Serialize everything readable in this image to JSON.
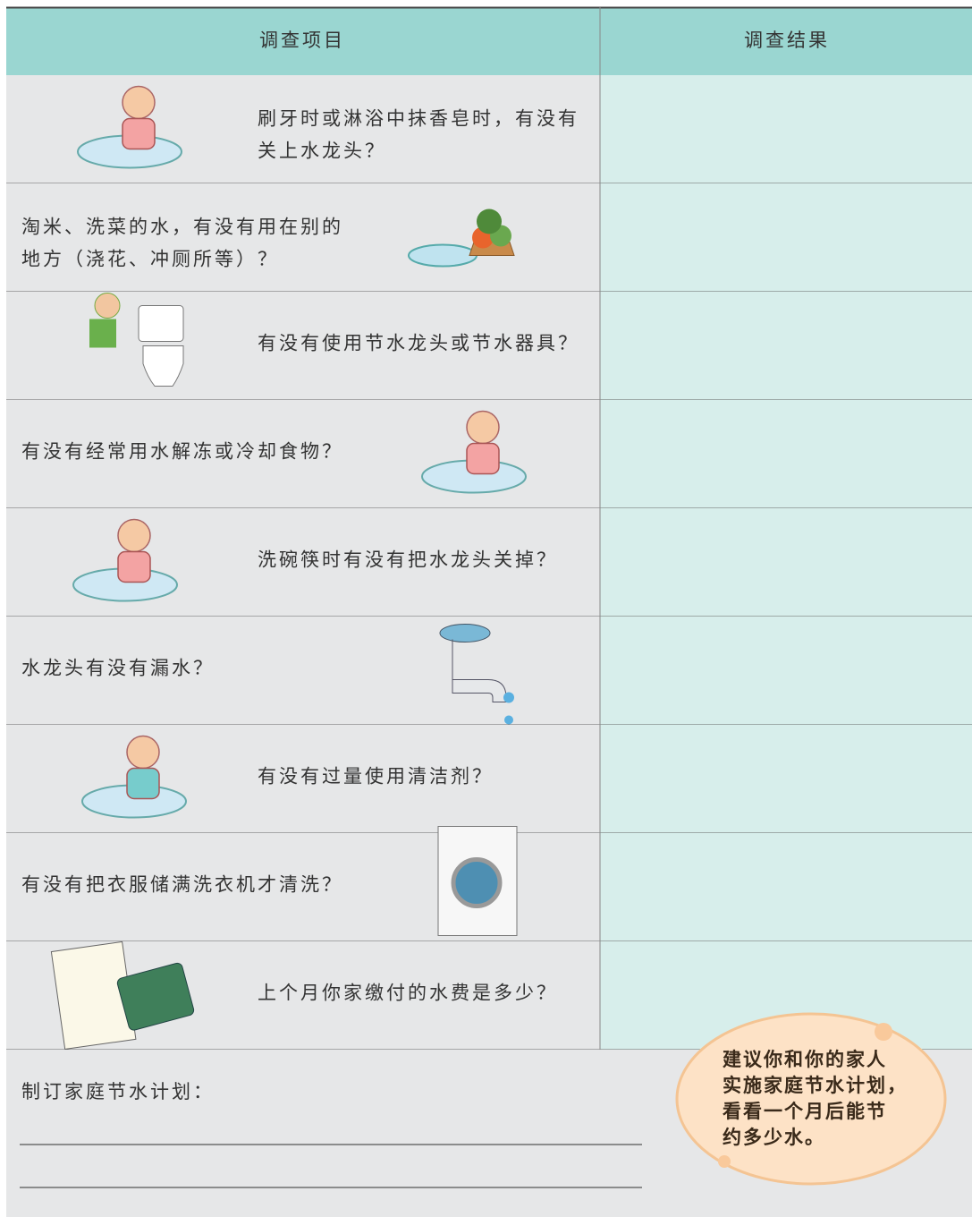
{
  "header": {
    "item": "调查项目",
    "result": "调查结果"
  },
  "rows": [
    {
      "lines": [
        "刷牙时或淋浴中抹香皂时，有没有",
        "关上水龙头？"
      ]
    },
    {
      "lines": [
        "淘米、洗菜的水，有没有用在别的",
        "地方（浇花、冲厕所等）？"
      ]
    },
    {
      "lines": [
        "有没有使用节水龙头或节水器具？"
      ]
    },
    {
      "lines": [
        "有没有经常用水解冻或冷却食物？"
      ]
    },
    {
      "lines": [
        "洗碗筷时有没有把水龙头关掉？"
      ]
    },
    {
      "lines": [
        "水龙头有没有漏水？"
      ]
    },
    {
      "lines": [
        "有没有过量使用清洁剂？"
      ]
    },
    {
      "lines": [
        "有没有把衣服储满洗衣机才清洗？"
      ]
    },
    {
      "lines": [
        "上个月你家缴付的水费是多少？"
      ]
    }
  ],
  "plan": {
    "label": "制订家庭节水计划："
  },
  "tip": {
    "lines": [
      "建议你和你的家人",
      "实施家庭节水计划，",
      "看看一个月后能节",
      "约多少水。"
    ]
  }
}
